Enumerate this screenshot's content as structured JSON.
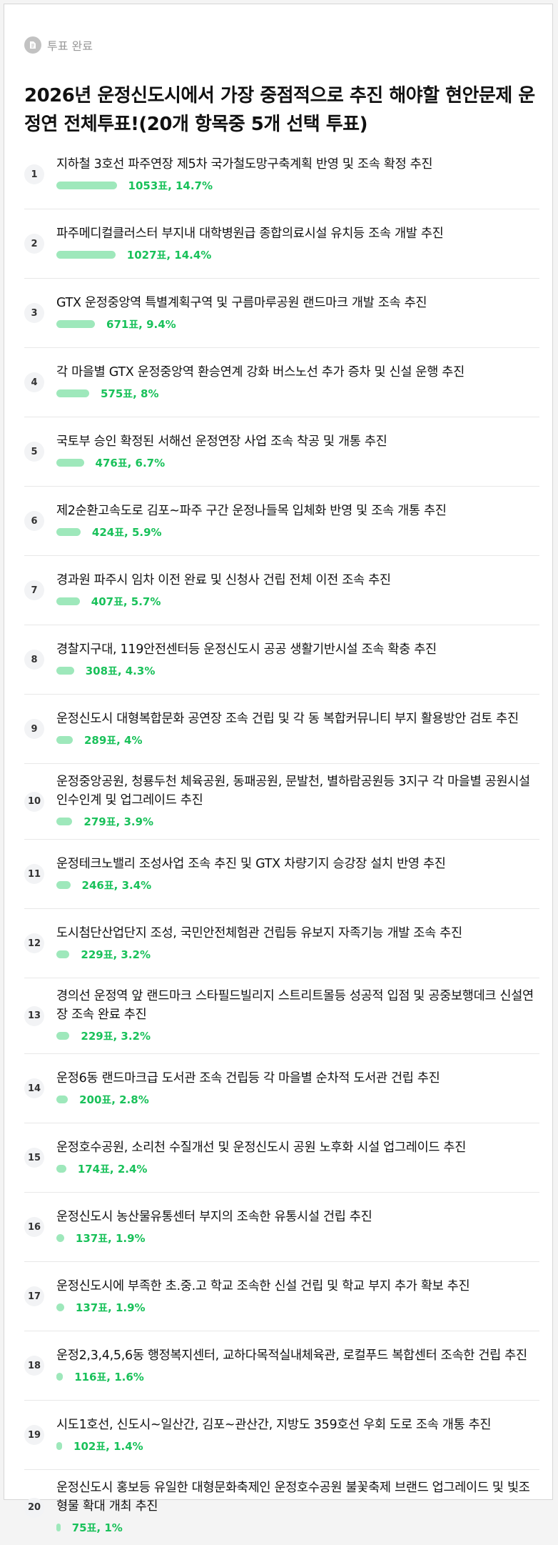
{
  "status": {
    "label": "투표 완료",
    "icon": "vote-complete-icon"
  },
  "title": "2026년 운정신도시에서 가장 중점적으로 추진 해야할 현안문제 운정연 전체투표!(20개 항목중 5개 선택 투표)",
  "colors": {
    "bar": "#9ee8bb",
    "result_text": "#19c15a"
  },
  "items": [
    {
      "num": "1",
      "label": "지하철 3호선 파주연장 제5차 국가철도망구축계획 반영 및 조속 확정 추진",
      "result": "1053표, 14.7%",
      "pct": 14.7
    },
    {
      "num": "2",
      "label": "파주메디컬클러스터 부지내 대학병원급 종합의료시설 유치등 조속 개발 추진",
      "result": "1027표, 14.4%",
      "pct": 14.4
    },
    {
      "num": "3",
      "label": "GTX 운정중앙역 특별계획구역 및 구름마루공원 랜드마크 개발 조속 추진",
      "result": "671표, 9.4%",
      "pct": 9.4
    },
    {
      "num": "4",
      "label": "각 마을별 GTX 운정중앙역 환승연계 강화 버스노선 추가 증차 및 신설 운행 추진",
      "result": "575표, 8%",
      "pct": 8
    },
    {
      "num": "5",
      "label": "국토부 승인 확정된 서해선 운정연장 사업 조속 착공 및 개통 추진",
      "result": "476표, 6.7%",
      "pct": 6.7
    },
    {
      "num": "6",
      "label": "제2순환고속도로 김포~파주 구간 운정나들목 입체화 반영 및 조속 개통 추진",
      "result": "424표, 5.9%",
      "pct": 5.9
    },
    {
      "num": "7",
      "label": "경과원 파주시 임차 이전 완료 및 신청사 건립 전체 이전 조속 추진",
      "result": "407표, 5.7%",
      "pct": 5.7
    },
    {
      "num": "8",
      "label": "경찰지구대, 119안전센터등 운정신도시 공공 생활기반시설 조속 확충 추진",
      "result": "308표, 4.3%",
      "pct": 4.3
    },
    {
      "num": "9",
      "label": "운정신도시 대형복합문화 공연장 조속 건립 및 각 동 복합커뮤니티 부지 활용방안 검토 추진",
      "result": "289표, 4%",
      "pct": 4
    },
    {
      "num": "10",
      "label": "운정중앙공원, 청룡두천 체육공원, 동패공원, 문발천, 별하람공원등 3지구 각 마을별 공원시설 인수인계 및 업그레이드 추진",
      "result": "279표, 3.9%",
      "pct": 3.9
    },
    {
      "num": "11",
      "label": "운정테크노밸리 조성사업 조속 추진 및 GTX 차량기지 승강장 설치 반영 추진",
      "result": "246표, 3.4%",
      "pct": 3.4
    },
    {
      "num": "12",
      "label": "도시첨단산업단지 조성, 국민안전체험관 건립등 유보지 자족기능 개발 조속 추진",
      "result": "229표, 3.2%",
      "pct": 3.2
    },
    {
      "num": "13",
      "label": "경의선 운정역 앞 랜드마크 스타필드빌리지 스트리트몰등 성공적 입점 및 공중보행데크 신설연장 조속 완료 추진",
      "result": "229표, 3.2%",
      "pct": 3.2
    },
    {
      "num": "14",
      "label": "운정6동 랜드마크급 도서관 조속 건립등 각 마을별 순차적 도서관 건립 추진",
      "result": "200표, 2.8%",
      "pct": 2.8
    },
    {
      "num": "15",
      "label": "운정호수공원, 소리천 수질개선 및 운정신도시 공원 노후화 시설 업그레이드 추진",
      "result": "174표, 2.4%",
      "pct": 2.4
    },
    {
      "num": "16",
      "label": "운정신도시 농산물유통센터 부지의 조속한 유통시설 건립 추진",
      "result": "137표, 1.9%",
      "pct": 1.9
    },
    {
      "num": "17",
      "label": "운정신도시에 부족한 초.중.고 학교 조속한 신설 건립 및 학교 부지 추가 확보 추진",
      "result": "137표, 1.9%",
      "pct": 1.9
    },
    {
      "num": "18",
      "label": "운정2,3,4,5,6동 행정복지센터, 교하다목적실내체육관, 로컬푸드 복합센터 조속한 건립 추진",
      "result": "116표, 1.6%",
      "pct": 1.6
    },
    {
      "num": "19",
      "label": "시도1호선, 신도시~일산간, 김포~관산간, 지방도 359호선 우회 도로 조속 개통 추진",
      "result": "102표, 1.4%",
      "pct": 1.4
    },
    {
      "num": "20",
      "label": "운정신도시 홍보등 유일한 대형문화축제인 운정호수공원 불꽃축제 브랜드 업그레이드 및 빛조형물 확대 개최 추진",
      "result": "75표, 1%",
      "pct": 1
    }
  ]
}
